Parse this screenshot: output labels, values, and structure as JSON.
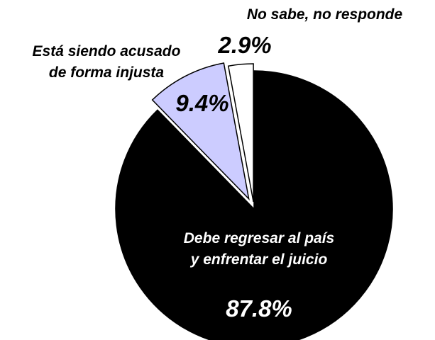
{
  "chart_data": {
    "type": "pie",
    "categories": [
      "Debe regresar al país\ny enfrentar el juicio",
      "Está siendo acusado\nde forma injusta",
      "No sabe, no responde"
    ],
    "values": [
      87.8,
      9.4,
      2.9
    ],
    "value_labels": [
      "87.8%",
      "9.4%",
      "2.9%"
    ],
    "colors": [
      "#000000",
      "#ccccff",
      "#ffffff"
    ]
  }
}
